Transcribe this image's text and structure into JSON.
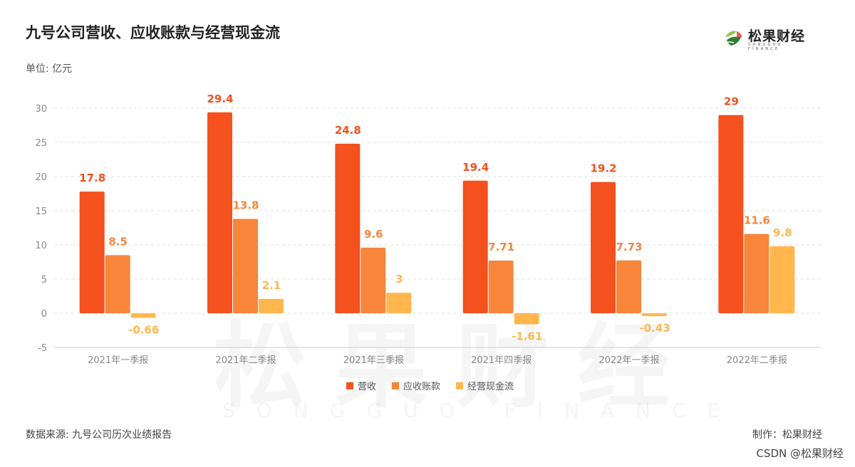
{
  "header": {
    "title": "九号公司营收、应收账款与经营现金流",
    "unit": "单位: 亿元"
  },
  "logo": {
    "name": "松果财经",
    "sub": "SONGGUO FINANCE",
    "icon": "leaf-globe-icon"
  },
  "watermark": {
    "text": "松果财经",
    "sub": "SONGGUO FINANCE"
  },
  "footer": {
    "source": "数据来源: 九号公司历次业绩报告",
    "maker": "制作：松果财经",
    "credit": "CSDN @松果财经"
  },
  "chart_data": {
    "type": "bar",
    "categories": [
      "2021年一季报",
      "2021年二季报",
      "2021年三季报",
      "2021年四季报",
      "2022年一季报",
      "2022年二季报"
    ],
    "series": [
      {
        "name": "营收",
        "values": [
          17.8,
          29.4,
          24.8,
          19.4,
          19.2,
          29
        ],
        "labels": [
          "17.8",
          "29.4",
          "24.8",
          "19.4",
          "19.2",
          "29"
        ],
        "color": "#f4511e",
        "label_color": "#f4511e"
      },
      {
        "name": "应收账款",
        "values": [
          8.5,
          13.8,
          9.6,
          7.71,
          7.73,
          11.6
        ],
        "labels": [
          "8.5",
          "13.8",
          "9.6",
          "7.71",
          "7.73",
          "11.6"
        ],
        "color": "#f7853a",
        "label_color": "#f7853a"
      },
      {
        "name": "经营现金流",
        "values": [
          -0.66,
          2.1,
          3,
          -1.61,
          -0.43,
          9.8
        ],
        "labels": [
          "-0.66",
          "2.1",
          "3",
          "-1.61",
          "-0.43",
          "9.8"
        ],
        "color": "#ffb74d",
        "label_color": "#ffb74d"
      }
    ],
    "yticks": [
      "30",
      "25",
      "20",
      "15",
      "10",
      "5",
      "0",
      "-5"
    ],
    "ytick_values": [
      30,
      25,
      20,
      15,
      10,
      5,
      0,
      -5
    ],
    "ylim": [
      -5,
      30
    ],
    "grid": true,
    "legend_position": "bottom-center"
  }
}
